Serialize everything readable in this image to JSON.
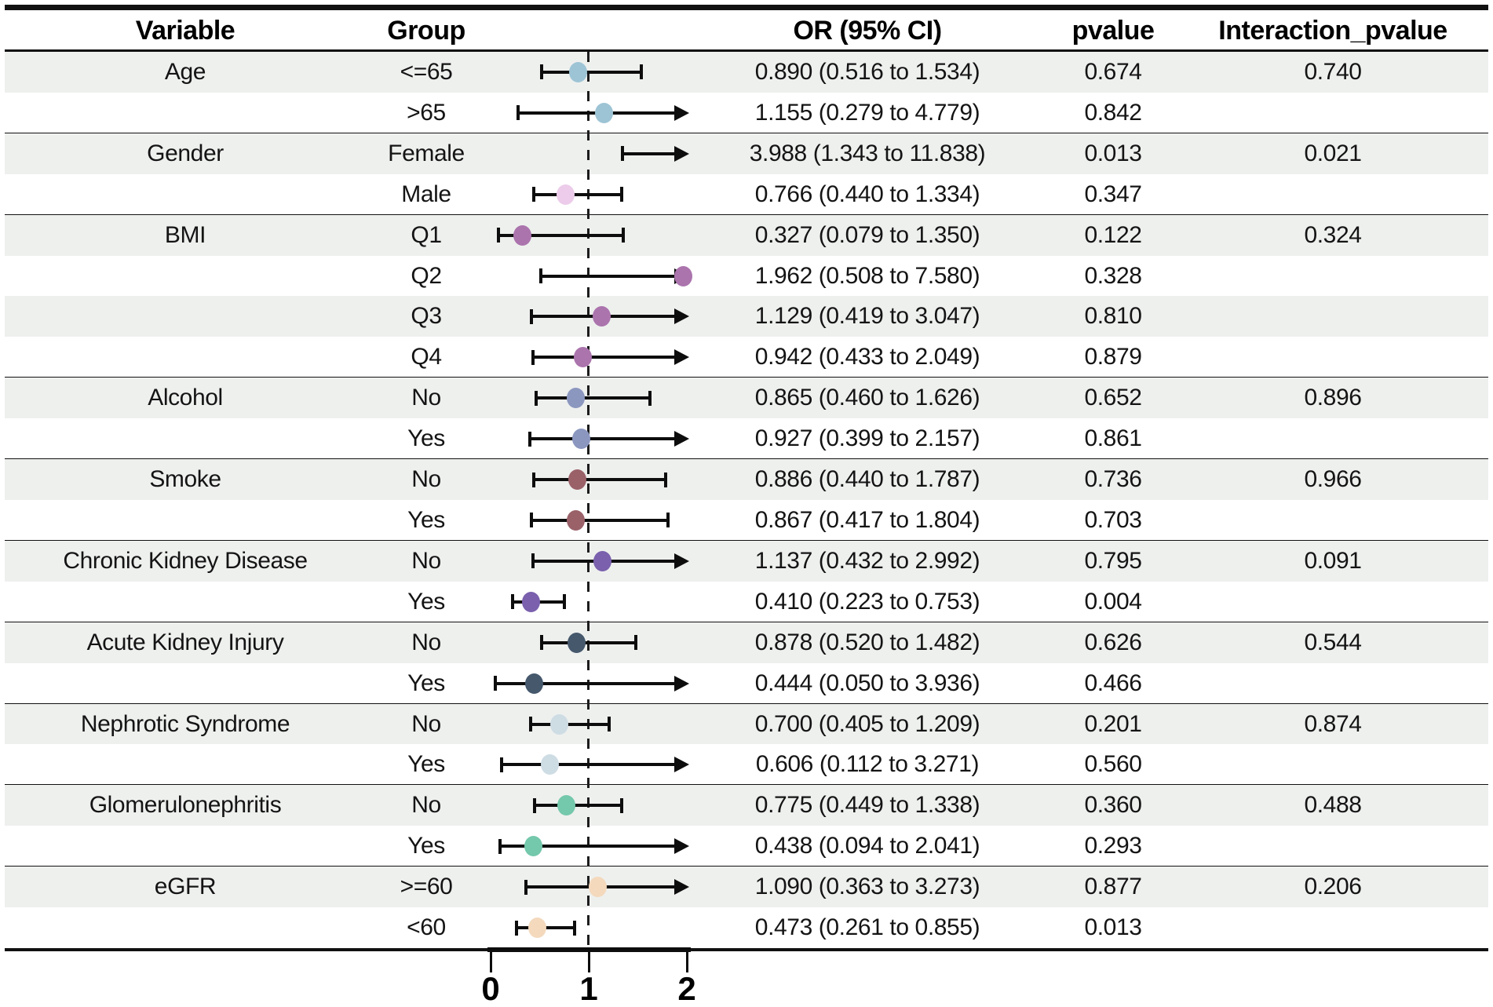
{
  "chart_data": {
    "type": "scatter",
    "variant": "forest-plot",
    "title": "",
    "columns": [
      "Variable",
      "Group",
      "OR (95% CI)",
      "pvalue",
      "Interaction_pvalue"
    ],
    "axis": {
      "ticks": [
        "0",
        "1",
        "2"
      ],
      "tick_values": [
        0,
        1,
        2
      ],
      "reference_line": 1,
      "xmin": 0,
      "xmax": 2.02,
      "clip_arrow_note": "upper CI bounds beyond xmax drawn as right arrows"
    },
    "colors": {
      "stripe": "#eef0ee",
      "line": "#0d0d0d"
    },
    "groups": [
      {
        "variable": "Age",
        "marker_color": "#9dc4d5",
        "interaction_pvalue": "0.740",
        "rows": [
          {
            "group": "<=65",
            "or": 0.89,
            "lo": 0.516,
            "hi": 1.534,
            "or_ci": "0.890 (0.516 to 1.534)",
            "pvalue": "0.674"
          },
          {
            "group": ">65",
            "or": 1.155,
            "lo": 0.279,
            "hi": 4.779,
            "or_ci": "1.155 (0.279 to 4.779)",
            "pvalue": "0.842"
          }
        ]
      },
      {
        "variable": "Gender",
        "marker_color": "#ecccea",
        "interaction_pvalue": "0.021",
        "rows": [
          {
            "group": "Female",
            "or": 3.988,
            "lo": 1.343,
            "hi": 11.838,
            "or_ci": "3.988 (1.343 to 11.838)",
            "pvalue": "0.013"
          },
          {
            "group": "Male",
            "or": 0.766,
            "lo": 0.44,
            "hi": 1.334,
            "or_ci": "0.766 (0.440 to 1.334)",
            "pvalue": "0.347"
          }
        ]
      },
      {
        "variable": "BMI",
        "marker_color": "#ab74ad",
        "interaction_pvalue": "0.324",
        "rows": [
          {
            "group": "Q1",
            "or": 0.327,
            "lo": 0.079,
            "hi": 1.35,
            "or_ci": "0.327 (0.079 to 1.350)",
            "pvalue": "0.122"
          },
          {
            "group": "Q2",
            "or": 1.962,
            "lo": 0.508,
            "hi": 7.58,
            "or_ci": "1.962 (0.508 to 7.580)",
            "pvalue": "0.328"
          },
          {
            "group": "Q3",
            "or": 1.129,
            "lo": 0.419,
            "hi": 3.047,
            "or_ci": "1.129 (0.419 to 3.047)",
            "pvalue": "0.810"
          },
          {
            "group": "Q4",
            "or": 0.942,
            "lo": 0.433,
            "hi": 2.049,
            "or_ci": "0.942 (0.433 to 2.049)",
            "pvalue": "0.879"
          }
        ]
      },
      {
        "variable": "Alcohol",
        "marker_color": "#8b97bf",
        "interaction_pvalue": "0.896",
        "rows": [
          {
            "group": "No",
            "or": 0.865,
            "lo": 0.46,
            "hi": 1.626,
            "or_ci": "0.865 (0.460 to 1.626)",
            "pvalue": "0.652"
          },
          {
            "group": "Yes",
            "or": 0.927,
            "lo": 0.399,
            "hi": 2.157,
            "or_ci": "0.927 (0.399 to 2.157)",
            "pvalue": "0.861"
          }
        ]
      },
      {
        "variable": "Smoke",
        "marker_color": "#9a6169",
        "interaction_pvalue": "0.966",
        "rows": [
          {
            "group": "No",
            "or": 0.886,
            "lo": 0.44,
            "hi": 1.787,
            "or_ci": "0.886 (0.440 to 1.787)",
            "pvalue": "0.736"
          },
          {
            "group": "Yes",
            "or": 0.867,
            "lo": 0.417,
            "hi": 1.804,
            "or_ci": "0.867 (0.417 to 1.804)",
            "pvalue": "0.703"
          }
        ]
      },
      {
        "variable": "Chronic Kidney Disease",
        "marker_color": "#7a60ad",
        "interaction_pvalue": "0.091",
        "rows": [
          {
            "group": "No",
            "or": 1.137,
            "lo": 0.432,
            "hi": 2.992,
            "or_ci": "1.137 (0.432 to 2.992)",
            "pvalue": "0.795"
          },
          {
            "group": "Yes",
            "or": 0.41,
            "lo": 0.223,
            "hi": 0.753,
            "or_ci": "0.410 (0.223 to 0.753)",
            "pvalue": "0.004"
          }
        ]
      },
      {
        "variable": "Acute Kidney Injury",
        "marker_color": "#45586c",
        "interaction_pvalue": "0.544",
        "rows": [
          {
            "group": "No",
            "or": 0.878,
            "lo": 0.52,
            "hi": 1.482,
            "or_ci": "0.878 (0.520 to 1.482)",
            "pvalue": "0.626"
          },
          {
            "group": "Yes",
            "or": 0.444,
            "lo": 0.05,
            "hi": 3.936,
            "or_ci": "0.444 (0.050 to 3.936)",
            "pvalue": "0.466"
          }
        ]
      },
      {
        "variable": "Nephrotic Syndrome",
        "marker_color": "#cedce4",
        "interaction_pvalue": "0.874",
        "rows": [
          {
            "group": "No",
            "or": 0.7,
            "lo": 0.405,
            "hi": 1.209,
            "or_ci": "0.700 (0.405 to 1.209)",
            "pvalue": "0.201"
          },
          {
            "group": "Yes",
            "or": 0.606,
            "lo": 0.112,
            "hi": 3.271,
            "or_ci": "0.606 (0.112 to 3.271)",
            "pvalue": "0.560"
          }
        ]
      },
      {
        "variable": "Glomerulonephritis",
        "marker_color": "#74c8ab",
        "interaction_pvalue": "0.488",
        "rows": [
          {
            "group": "No",
            "or": 0.775,
            "lo": 0.449,
            "hi": 1.338,
            "or_ci": "0.775 (0.449 to 1.338)",
            "pvalue": "0.360"
          },
          {
            "group": "Yes",
            "or": 0.438,
            "lo": 0.094,
            "hi": 2.041,
            "or_ci": "0.438 (0.094 to 2.041)",
            "pvalue": "0.293"
          }
        ]
      },
      {
        "variable": "eGFR",
        "marker_color": "#f4d9bd",
        "interaction_pvalue": "0.206",
        "rows": [
          {
            "group": ">=60",
            "or": 1.09,
            "lo": 0.363,
            "hi": 3.273,
            "or_ci": "1.090 (0.363 to 3.273)",
            "pvalue": "0.877"
          },
          {
            "group": "<60",
            "or": 0.473,
            "lo": 0.261,
            "hi": 0.855,
            "or_ci": "0.473 (0.261 to 0.855)",
            "pvalue": "0.013"
          }
        ]
      }
    ]
  }
}
